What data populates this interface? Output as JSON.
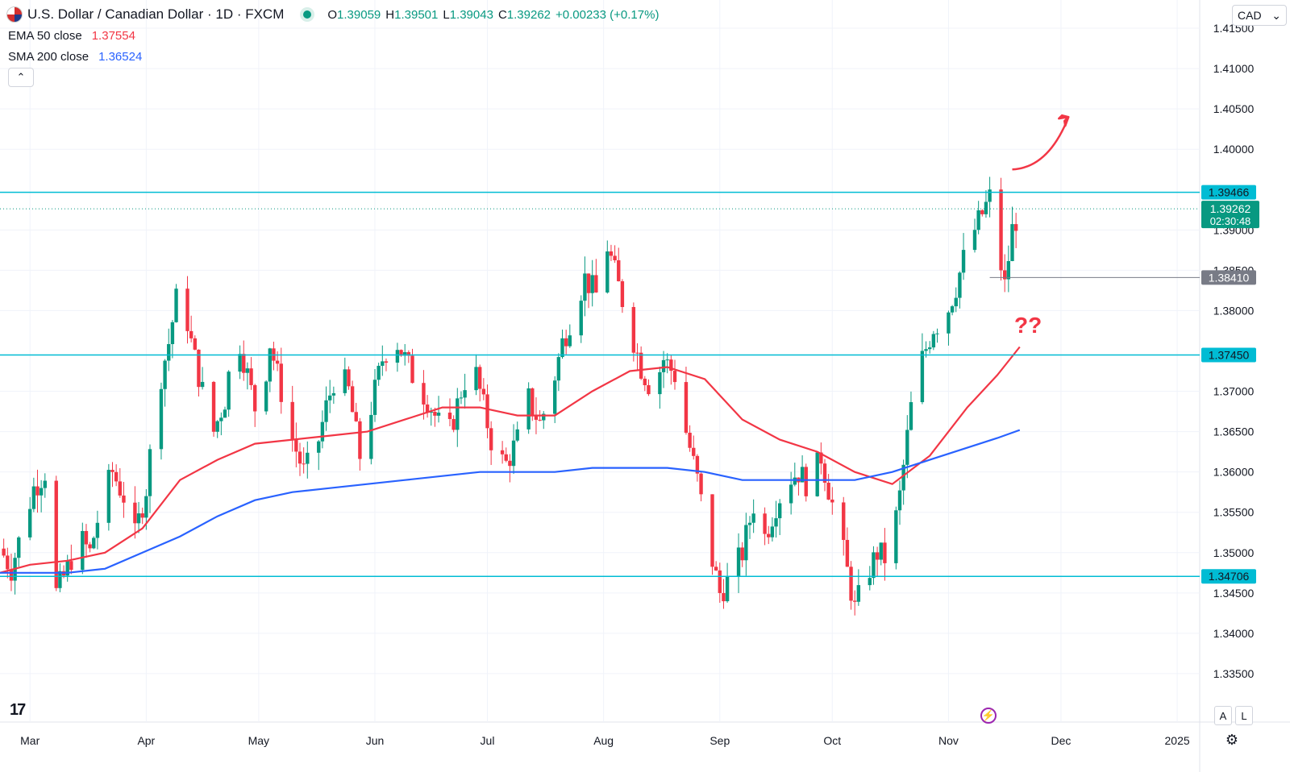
{
  "header": {
    "symbol_title": "U.S. Dollar / Canadian Dollar · 1D · FXCM",
    "o_label": "O",
    "o_value": "1.39059",
    "h_label": "H",
    "h_value": "1.39501",
    "l_label": "L",
    "l_value": "1.39043",
    "c_label": "C",
    "c_value": "1.39262",
    "change": "+0.00233 (+0.17%)"
  },
  "indicators": [
    {
      "label": "EMA 50 close",
      "value": "1.37554",
      "color": "#f23645"
    },
    {
      "label": "SMA 200 close",
      "value": "1.36524",
      "color": "#2962ff"
    }
  ],
  "collapse_glyph": "⌃",
  "currency": {
    "label": "CAD",
    "chevron": "⌄"
  },
  "annotation_text": "??",
  "bottom_controls": {
    "auto_label": "A",
    "log_label": "L",
    "bolt_glyph": "⚡",
    "gear_glyph": "⚙",
    "logo": "17"
  },
  "chart_data": {
    "type": "candlestick",
    "title": "U.S. Dollar / Canadian Dollar · 1D · FXCM",
    "ylim": [
      1.329,
      1.4185
    ],
    "y_ticks": [
      1.335,
      1.34,
      1.345,
      1.35,
      1.355,
      1.36,
      1.365,
      1.37,
      1.38,
      1.385,
      1.39,
      1.4,
      1.405,
      1.41,
      1.415
    ],
    "y_tick_labels": [
      "1.33500",
      "1.34000",
      "1.34500",
      "1.35000",
      "1.35500",
      "1.36000",
      "1.36500",
      "1.37000",
      "1.38000",
      "1.38500",
      "1.39000",
      "1.40000",
      "1.40500",
      "1.41000",
      "1.41500"
    ],
    "x_ticks": [
      {
        "label": "Mar",
        "day": 0
      },
      {
        "label": "Apr",
        "day": 31
      },
      {
        "label": "May",
        "day": 61
      },
      {
        "label": "Jun",
        "day": 92
      },
      {
        "label": "Jul",
        "day": 122
      },
      {
        "label": "Aug",
        "day": 153
      },
      {
        "label": "Sep",
        "day": 184
      },
      {
        "label": "Oct",
        "day": 214
      },
      {
        "label": "Nov",
        "day": 245
      },
      {
        "label": "Dec",
        "day": 275
      },
      {
        "label": "2025",
        "day": 306
      }
    ],
    "x_range_days": [
      -8,
      312
    ],
    "horizontal_levels": [
      {
        "value": 1.39466,
        "label": "1.39466",
        "color": "#00bcd4"
      },
      {
        "value": 1.3745,
        "label": "1.37450",
        "color": "#00bcd4"
      },
      {
        "value": 1.34706,
        "label": "1.34706",
        "color": "#00bcd4"
      }
    ],
    "last_price": {
      "value": 1.39262,
      "label": "1.39262",
      "countdown": "02:30:48",
      "color": "#089981"
    },
    "marker_level": {
      "value": 1.3841,
      "label": "1.38410",
      "color": "#787b86"
    },
    "arrow": {
      "from": [
        262,
        1.3975
      ],
      "to": [
        277,
        1.404
      ],
      "color": "#f23645"
    },
    "ohlc_keyframes": [
      [
        -8,
        1.3505
      ],
      [
        -5,
        1.348
      ],
      [
        -2,
        1.353
      ],
      [
        1,
        1.358
      ],
      [
        4,
        1.36
      ],
      [
        7,
        1.345
      ],
      [
        10,
        1.348
      ],
      [
        13,
        1.352
      ],
      [
        16,
        1.35
      ],
      [
        19,
        1.356
      ],
      [
        22,
        1.36
      ],
      [
        25,
        1.357
      ],
      [
        28,
        1.352
      ],
      [
        31,
        1.358
      ],
      [
        34,
        1.37
      ],
      [
        37,
        1.376
      ],
      [
        40,
        1.384
      ],
      [
        43,
        1.376
      ],
      [
        46,
        1.37
      ],
      [
        49,
        1.365
      ],
      [
        52,
        1.369
      ],
      [
        55,
        1.378
      ],
      [
        58,
        1.372
      ],
      [
        61,
        1.366
      ],
      [
        64,
        1.376
      ],
      [
        67,
        1.37
      ],
      [
        70,
        1.364
      ],
      [
        73,
        1.36
      ],
      [
        76,
        1.362
      ],
      [
        79,
        1.368
      ],
      [
        82,
        1.373
      ],
      [
        85,
        1.37
      ],
      [
        88,
        1.362
      ],
      [
        91,
        1.368
      ],
      [
        94,
        1.374
      ],
      [
        97,
        1.377
      ],
      [
        100,
        1.374
      ],
      [
        103,
        1.371
      ],
      [
        106,
        1.369
      ],
      [
        109,
        1.366
      ],
      [
        112,
        1.365
      ],
      [
        115,
        1.37
      ],
      [
        118,
        1.374
      ],
      [
        121,
        1.368
      ],
      [
        124,
        1.362
      ],
      [
        127,
        1.361
      ],
      [
        130,
        1.364
      ],
      [
        133,
        1.369
      ],
      [
        136,
        1.366
      ],
      [
        139,
        1.37
      ],
      [
        142,
        1.376
      ],
      [
        145,
        1.38
      ],
      [
        148,
        1.384
      ],
      [
        151,
        1.382
      ],
      [
        154,
        1.388
      ],
      [
        157,
        1.383
      ],
      [
        160,
        1.378
      ],
      [
        163,
        1.373
      ],
      [
        166,
        1.37
      ],
      [
        169,
        1.374
      ],
      [
        172,
        1.372
      ],
      [
        175,
        1.365
      ],
      [
        178,
        1.359
      ],
      [
        181,
        1.351
      ],
      [
        184,
        1.345
      ],
      [
        187,
        1.347
      ],
      [
        190,
        1.35
      ],
      [
        193,
        1.356
      ],
      [
        196,
        1.352
      ],
      [
        199,
        1.356
      ],
      [
        202,
        1.359
      ],
      [
        205,
        1.36
      ],
      [
        208,
        1.358
      ],
      [
        211,
        1.362
      ],
      [
        214,
        1.356
      ],
      [
        217,
        1.35
      ],
      [
        220,
        1.343
      ],
      [
        223,
        1.347
      ],
      [
        226,
        1.35
      ],
      [
        229,
        1.349
      ],
      [
        232,
        1.357
      ],
      [
        235,
        1.368
      ],
      [
        238,
        1.374
      ],
      [
        241,
        1.378
      ],
      [
        244,
        1.379
      ],
      [
        247,
        1.383
      ],
      [
        250,
        1.388
      ],
      [
        253,
        1.391
      ],
      [
        256,
        1.394
      ],
      [
        258,
        1.388
      ],
      [
        260,
        1.383
      ],
      [
        262,
        1.39
      ],
      [
        264,
        1.3926
      ]
    ],
    "ema50_points": [
      [
        -8,
        1.3475
      ],
      [
        0,
        1.3485
      ],
      [
        10,
        1.349
      ],
      [
        20,
        1.35
      ],
      [
        30,
        1.353
      ],
      [
        40,
        1.359
      ],
      [
        50,
        1.3615
      ],
      [
        60,
        1.3635
      ],
      [
        70,
        1.364
      ],
      [
        80,
        1.3645
      ],
      [
        90,
        1.365
      ],
      [
        100,
        1.3665
      ],
      [
        110,
        1.368
      ],
      [
        120,
        1.368
      ],
      [
        130,
        1.367
      ],
      [
        140,
        1.367
      ],
      [
        150,
        1.37
      ],
      [
        160,
        1.3725
      ],
      [
        170,
        1.373
      ],
      [
        180,
        1.3715
      ],
      [
        190,
        1.3665
      ],
      [
        200,
        1.364
      ],
      [
        210,
        1.3625
      ],
      [
        220,
        1.36
      ],
      [
        230,
        1.3585
      ],
      [
        240,
        1.362
      ],
      [
        250,
        1.368
      ],
      [
        258,
        1.372
      ],
      [
        264,
        1.3755
      ]
    ],
    "sma200_points": [
      [
        -8,
        1.3475
      ],
      [
        10,
        1.3475
      ],
      [
        20,
        1.348
      ],
      [
        30,
        1.35
      ],
      [
        40,
        1.352
      ],
      [
        50,
        1.3545
      ],
      [
        60,
        1.3565
      ],
      [
        70,
        1.3575
      ],
      [
        80,
        1.358
      ],
      [
        90,
        1.3585
      ],
      [
        100,
        1.359
      ],
      [
        110,
        1.3595
      ],
      [
        120,
        1.36
      ],
      [
        130,
        1.36
      ],
      [
        140,
        1.36
      ],
      [
        150,
        1.3605
      ],
      [
        160,
        1.3605
      ],
      [
        170,
        1.3605
      ],
      [
        180,
        1.36
      ],
      [
        190,
        1.359
      ],
      [
        200,
        1.359
      ],
      [
        210,
        1.359
      ],
      [
        220,
        1.359
      ],
      [
        230,
        1.36
      ],
      [
        240,
        1.3615
      ],
      [
        250,
        1.363
      ],
      [
        258,
        1.3642
      ],
      [
        264,
        1.3652
      ]
    ]
  }
}
